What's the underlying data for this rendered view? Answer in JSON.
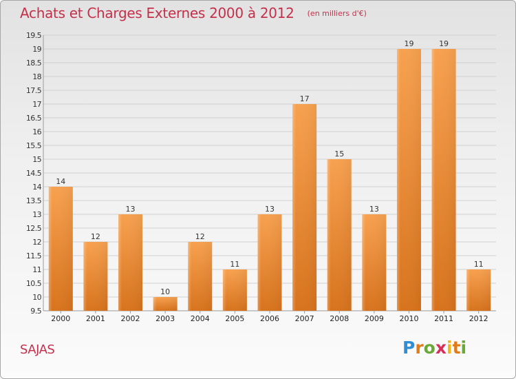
{
  "chart_data": {
    "type": "bar",
    "title": "Achats et Charges Externes 2000 à 2012",
    "unit": "(en milliers d'€)",
    "categories": [
      "2000",
      "2001",
      "2002",
      "2003",
      "2004",
      "2005",
      "2006",
      "2007",
      "2008",
      "2009",
      "2010",
      "2011",
      "2012"
    ],
    "values": [
      14,
      12,
      13,
      10,
      12,
      11,
      13,
      17,
      15,
      13,
      19,
      19,
      11
    ],
    "ylim": [
      9.5,
      19.5
    ],
    "yticks": [
      "9.5",
      "10",
      "10.5",
      "11",
      "11.5",
      "12",
      "12.5",
      "13",
      "13.5",
      "14",
      "14.5",
      "15",
      "15.5",
      "16",
      "16.5",
      "17",
      "17.5",
      "18",
      "18.5",
      "19",
      "19.5"
    ],
    "grid": true,
    "bar_color": "#f0923a"
  },
  "footer": {
    "commune": "SAJAS",
    "logo_letters": [
      "P",
      "r",
      "o",
      "x",
      "i",
      "t",
      "i"
    ]
  }
}
